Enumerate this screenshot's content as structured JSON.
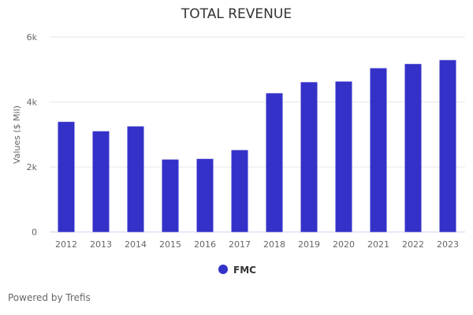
{
  "chart_data": {
    "type": "bar",
    "title": "TOTAL REVENUE",
    "xlabel": "",
    "ylabel": "Values ($ Mil)",
    "ylim": [
      0,
      6000
    ],
    "yticks": [
      0,
      2000,
      4000,
      6000
    ],
    "ytick_labels": [
      "0",
      "2k",
      "4k",
      "6k"
    ],
    "grid": true,
    "legend_position": "bottom",
    "categories": [
      "2012",
      "2013",
      "2014",
      "2015",
      "2016",
      "2017",
      "2018",
      "2019",
      "2020",
      "2021",
      "2022",
      "2023"
    ],
    "series": [
      {
        "name": "FMC",
        "color": "#3431c9",
        "values": [
          3390,
          3100,
          3250,
          2230,
          2250,
          2520,
          4270,
          4610,
          4630,
          5040,
          5170,
          5290
        ]
      }
    ]
  },
  "credit": "Powered by Trefis"
}
